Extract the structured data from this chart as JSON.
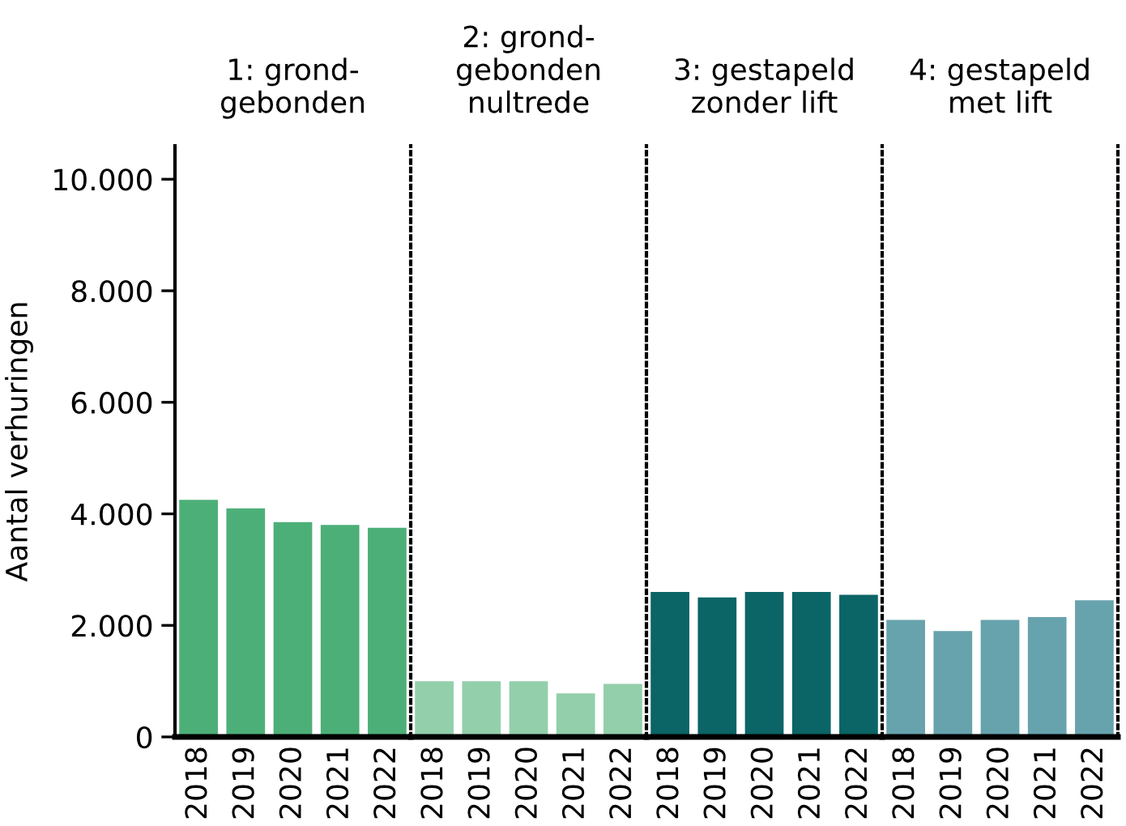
{
  "chart_data": [
    {
      "type": "bar",
      "title": "1: grond-\ngebonden",
      "ylabel": "Aantal verhuringen",
      "categories": [
        "2018",
        "2019",
        "2020",
        "2021",
        "2022"
      ],
      "values": [
        4250,
        4100,
        3850,
        3800,
        3750
      ],
      "color": "#4daf78",
      "ylim": [
        0,
        10600
      ],
      "yticks": [
        {
          "value": 0,
          "label": "0"
        },
        {
          "value": 2000,
          "label": "2.000"
        },
        {
          "value": 4000,
          "label": "4.000"
        },
        {
          "value": 6000,
          "label": "6.000"
        },
        {
          "value": 8000,
          "label": "8.000"
        },
        {
          "value": 10000,
          "label": "10.000"
        }
      ]
    },
    {
      "type": "bar",
      "title": "2: grond-\ngebonden\nnultrede",
      "categories": [
        "2018",
        "2019",
        "2020",
        "2021",
        "2022"
      ],
      "values": [
        1000,
        1000,
        1000,
        780,
        950
      ],
      "color": "#93cfab",
      "ylim": [
        0,
        10600
      ],
      "tick_labels": "x"
    },
    {
      "type": "bar",
      "title": "3: gestapeld\nzonder lift",
      "categories": [
        "2018",
        "2019",
        "2020",
        "2021",
        "2022"
      ],
      "values": [
        2600,
        2500,
        2600,
        2600,
        2550
      ],
      "color": "#0b6465",
      "ylim": [
        0,
        10600
      ],
      "tick_labels": "x"
    },
    {
      "type": "bar",
      "title": "4: gestapeld\nmet lift",
      "categories": [
        "2018",
        "2019",
        "2020",
        "2021",
        "2022"
      ],
      "values": [
        2100,
        1900,
        2100,
        2150,
        2450
      ],
      "color": "#67a3ad",
      "ylim": [
        0,
        10600
      ],
      "tick_labels": "x"
    }
  ]
}
